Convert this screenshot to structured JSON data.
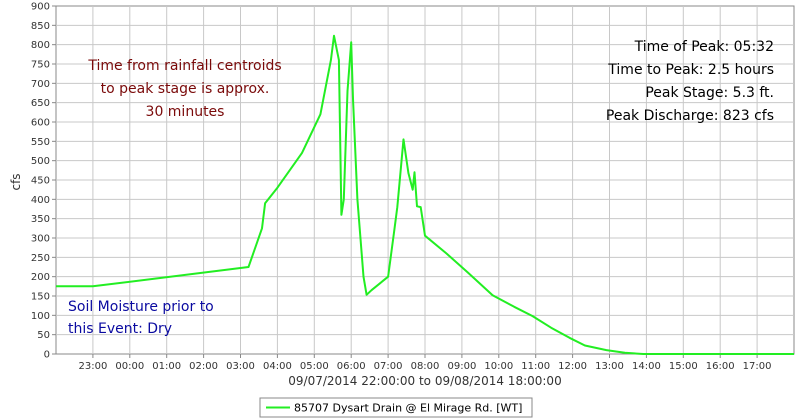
{
  "chart_data": {
    "type": "line",
    "x_range_label": "09/07/2014 22:00:00 to 09/08/2014 18:00:00",
    "ylabel": "cfs",
    "ylim": [
      0,
      900
    ],
    "y_ticks": [
      0,
      50,
      100,
      150,
      200,
      250,
      300,
      350,
      400,
      450,
      500,
      550,
      600,
      650,
      700,
      750,
      800,
      850,
      900
    ],
    "x_start_label": "09/07/2014 22:00:00",
    "x_end_label": "09/08/2014 18:00:00",
    "x_ticks": [
      "23:00",
      "00:00",
      "01:00",
      "02:00",
      "03:00",
      "04:00",
      "05:00",
      "06:00",
      "07:00",
      "08:00",
      "09:00",
      "10:00",
      "11:00",
      "12:00",
      "13:00",
      "14:00",
      "15:00",
      "16:00",
      "17:00"
    ],
    "grid": true,
    "series": [
      {
        "name": "85707 Dysart Drain @ El Mirage Rd. [WT]",
        "color": "#22ee22",
        "x": [
          "22:00",
          "23:00",
          "03:13",
          "03:35",
          "03:40",
          "04:00",
          "04:40",
          "05:10",
          "05:27",
          "05:32",
          "05:40",
          "05:44",
          "05:48",
          "05:54",
          "06:00",
          "06:03",
          "06:10",
          "06:20",
          "06:25",
          "06:33",
          "07:00",
          "07:05",
          "07:10",
          "07:15",
          "07:25",
          "07:33",
          "07:40",
          "07:43",
          "07:47",
          "07:53",
          "08:00",
          "08:35",
          "09:10",
          "09:50",
          "10:25",
          "10:55",
          "11:25",
          "11:55",
          "12:20",
          "12:55",
          "13:25",
          "13:55",
          "14:25",
          "14:55",
          "15:25",
          "16:25",
          "18:00"
        ],
        "values": [
          175,
          175,
          225,
          325,
          390,
          430,
          520,
          620,
          760,
          823,
          760,
          360,
          400,
          680,
          806,
          660,
          400,
          200,
          153,
          165,
          200,
          260,
          320,
          380,
          555,
          468,
          425,
          470,
          382,
          380,
          306,
          260,
          210,
          152,
          122,
          98,
          68,
          42,
          22,
          10,
          3,
          0,
          0,
          0,
          0,
          0,
          0
        ]
      }
    ]
  },
  "annotations": {
    "rainfall_note": [
      "Time from rainfall centroids",
      "to peak stage is approx.",
      "30 minutes"
    ],
    "soil_note": [
      "Soil Moisture prior to",
      "this Event: Dry"
    ],
    "stats": [
      "Time of Peak: 05:32",
      "Time to Peak: 2.5 hours",
      "Peak Stage: 5.3 ft.",
      "Peak Discharge: 823 cfs"
    ]
  },
  "colors": {
    "line": "#22ee22",
    "rainfall_note": "#7a0a0a",
    "soil_note": "#0a0aa0",
    "grid": "#c8c8c8"
  }
}
